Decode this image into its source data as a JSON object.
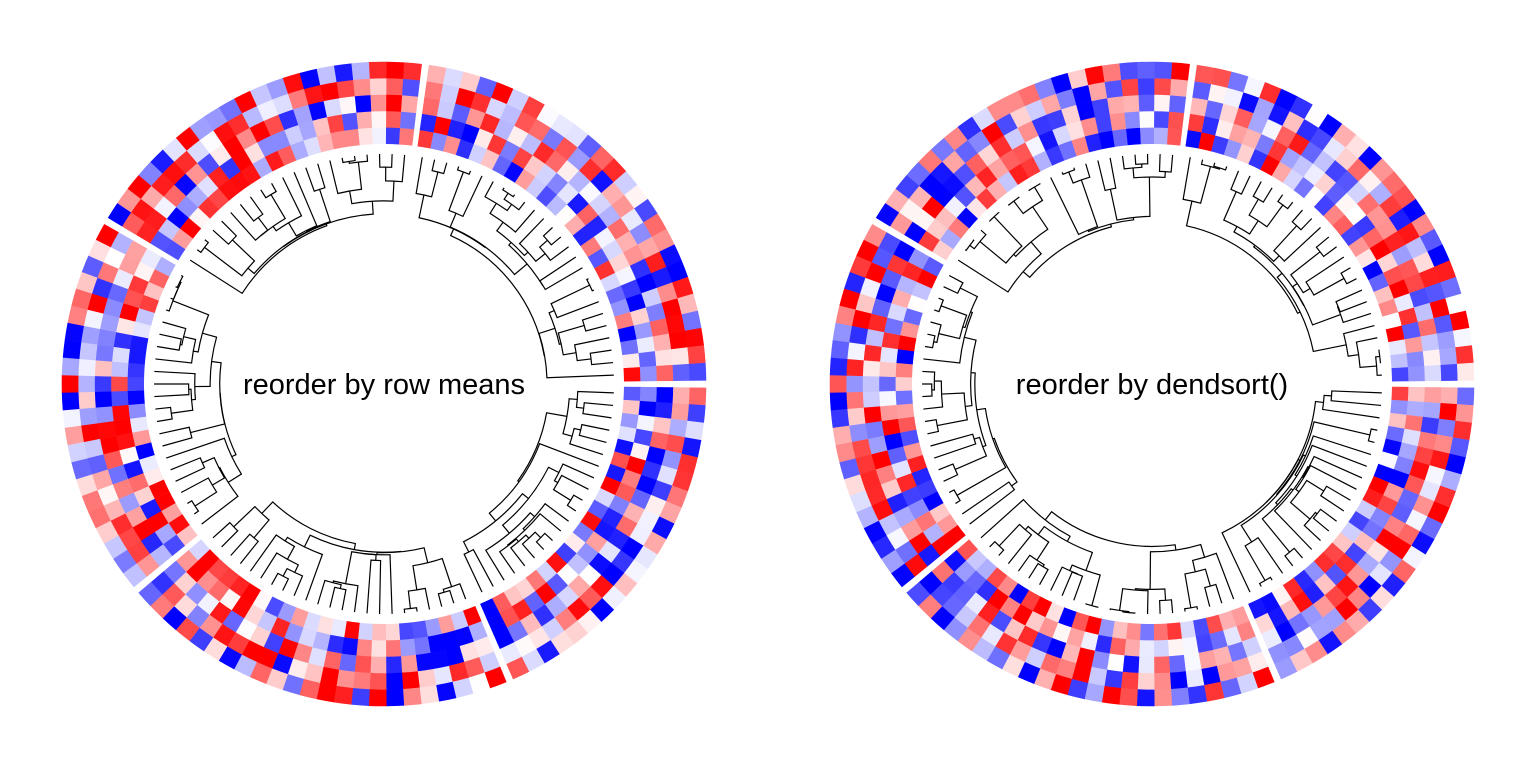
{
  "chart_data": [
    {
      "type": "heatmap",
      "layout": "circular",
      "title": "reorder by row means",
      "tracks": 5,
      "sectors": 5,
      "sector_sizes": [
        21,
        23,
        22,
        21,
        26
      ],
      "dendrogram": true,
      "colors": {
        "low": "#0000ff",
        "mid": "#ffffff",
        "high": "#ff0000"
      },
      "seed": 11
    },
    {
      "type": "heatmap",
      "layout": "circular",
      "title": "reorder by dendsort()",
      "tracks": 5,
      "sectors": 5,
      "sector_sizes": [
        21,
        23,
        22,
        21,
        26
      ],
      "dendrogram": true,
      "colors": {
        "low": "#0000ff",
        "mid": "#ffffff",
        "high": "#ff0000"
      },
      "seed": 29
    }
  ]
}
